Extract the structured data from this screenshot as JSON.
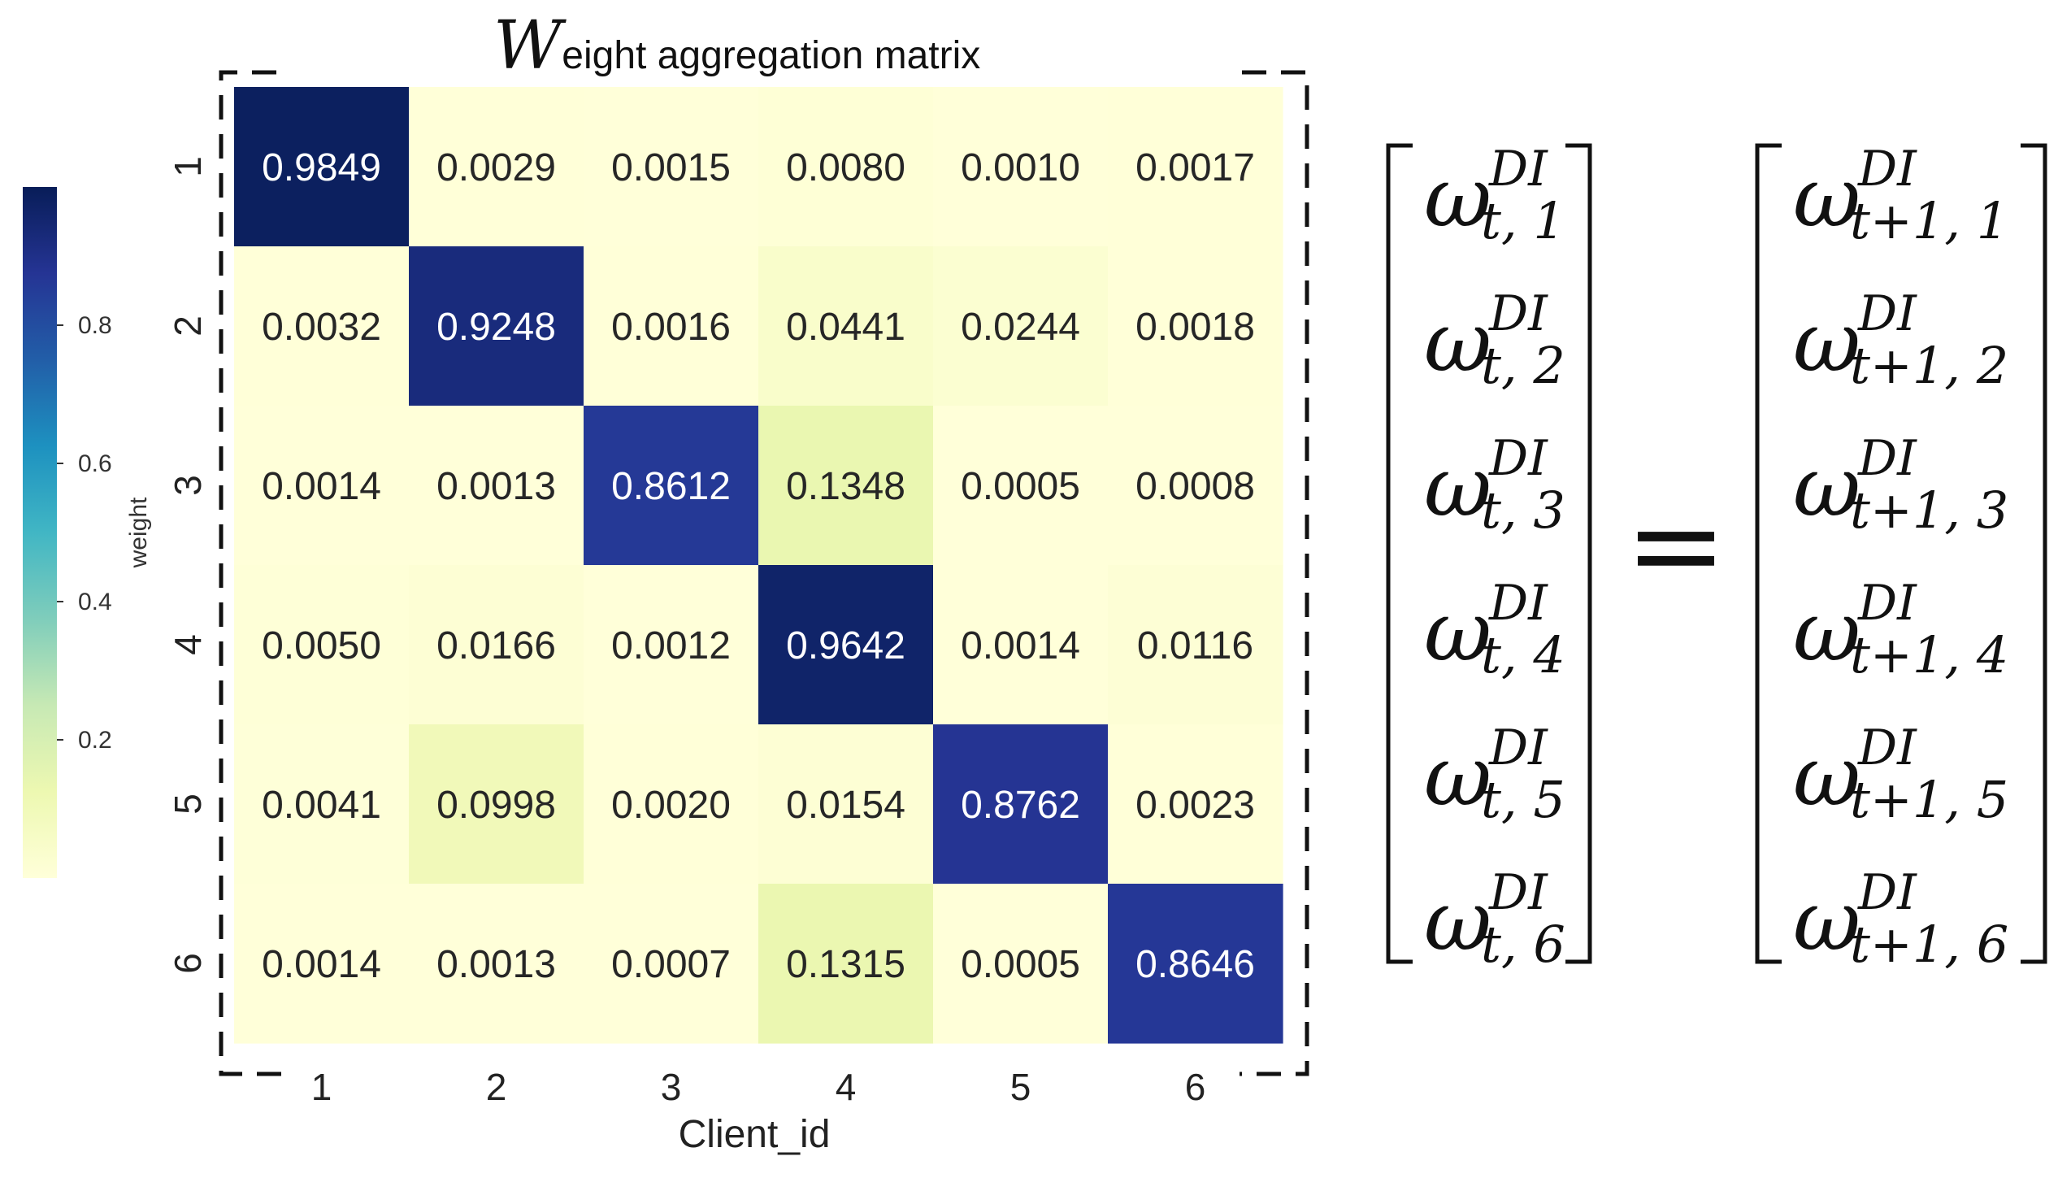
{
  "chart_data": {
    "type": "heatmap",
    "title": {
      "big": "W",
      "rest": "eight aggregation matrix"
    },
    "xlabel": "Client_id",
    "ylabel": "",
    "x_tick_labels": [
      "1",
      "2",
      "3",
      "4",
      "5",
      "6"
    ],
    "y_tick_labels": [
      "1",
      "2",
      "3",
      "4",
      "5",
      "6"
    ],
    "values": [
      [
        0.9849,
        0.0029,
        0.0015,
        0.008,
        0.001,
        0.0017
      ],
      [
        0.0032,
        0.9248,
        0.0016,
        0.0441,
        0.0244,
        0.0018
      ],
      [
        0.0014,
        0.0013,
        0.8612,
        0.1348,
        0.0005,
        0.0008
      ],
      [
        0.005,
        0.0166,
        0.0012,
        0.9642,
        0.0014,
        0.0116
      ],
      [
        0.0041,
        0.0998,
        0.002,
        0.0154,
        0.8762,
        0.0023
      ],
      [
        0.0014,
        0.0013,
        0.0007,
        0.1315,
        0.0005,
        0.8646
      ]
    ],
    "value_labels": [
      [
        "0.9849",
        "0.0029",
        "0.0015",
        "0.0080",
        "0.0010",
        "0.0017"
      ],
      [
        "0.0032",
        "0.9248",
        "0.0016",
        "0.0441",
        "0.0244",
        "0.0018"
      ],
      [
        "0.0014",
        "0.0013",
        "0.8612",
        "0.1348",
        "0.0005",
        "0.0008"
      ],
      [
        "0.0050",
        "0.0166",
        "0.0012",
        "0.9642",
        "0.0014",
        "0.0116"
      ],
      [
        "0.0041",
        "0.0998",
        "0.0020",
        "0.0154",
        "0.8762",
        "0.0023"
      ],
      [
        "0.0014",
        "0.0013",
        "0.0007",
        "0.1315",
        "0.0005",
        "0.8646"
      ]
    ],
    "colorbar": {
      "label": "weight",
      "range": [
        0,
        1
      ],
      "ticks": [
        0.2,
        0.4,
        0.6,
        0.8
      ],
      "tick_labels": [
        "0.2",
        "0.4",
        "0.6",
        "0.8"
      ],
      "colormap": "YlGnBu",
      "colors": [
        "#ffffd9",
        "#edf8b1",
        "#c7e9b4",
        "#7fcdbb",
        "#41b6c4",
        "#1d91c0",
        "#225ea8",
        "#253494",
        "#081d58"
      ]
    }
  },
  "equation": {
    "omega": "ω",
    "superscript": "DI",
    "lhs_subscripts": [
      "t, 1",
      "t, 2",
      "t, 3",
      "t, 4",
      "t, 5",
      "t, 6"
    ],
    "equals": "=",
    "rhs_subscripts": [
      "t+1, 1",
      "t+1, 2",
      "t+1, 3",
      "t+1, 4",
      "t+1, 5",
      "t+1, 6"
    ]
  }
}
